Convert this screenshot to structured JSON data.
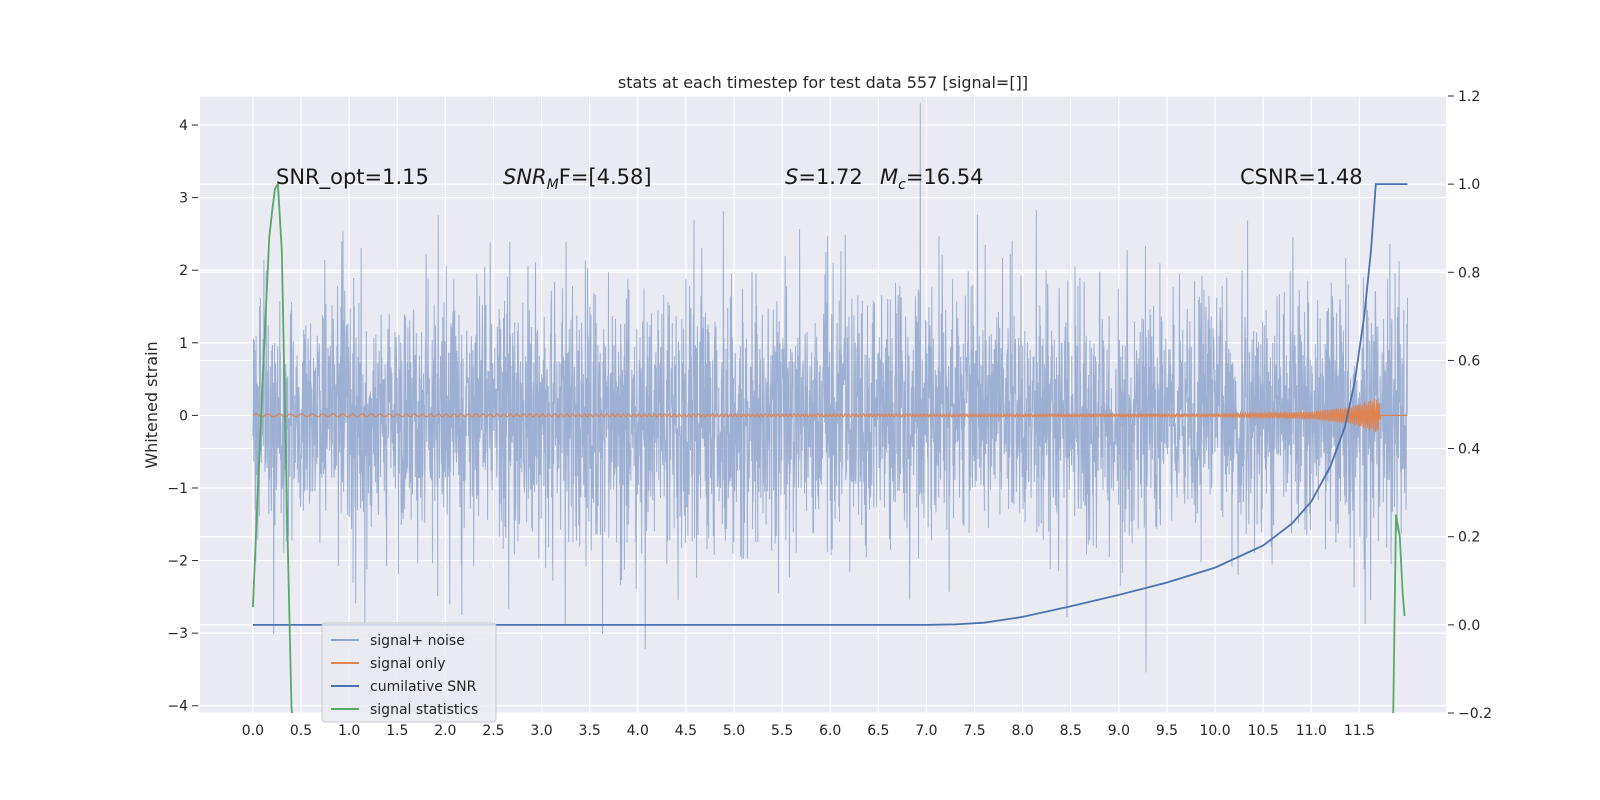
{
  "chart_data": {
    "type": "line",
    "title": "stats at each timestep for test data 557 [signal=[]]",
    "ylabel": "Whitened strain",
    "xlim": [
      -0.55,
      12.4
    ],
    "ylim": [
      -4.1,
      4.4
    ],
    "y2lim": [
      -0.2,
      1.2
    ],
    "x_ticks": [
      "0.0",
      "0.5",
      "1.0",
      "1.5",
      "2.0",
      "2.5",
      "3.0",
      "3.5",
      "4.0",
      "4.5",
      "5.0",
      "5.5",
      "6.0",
      "6.5",
      "7.0",
      "7.5",
      "8.0",
      "8.5",
      "9.0",
      "9.5",
      "10.0",
      "10.5",
      "11.0",
      "11.5"
    ],
    "y_ticks": [
      "4",
      "3",
      "2",
      "1",
      "0",
      "−1",
      "−2",
      "−3",
      "−4"
    ],
    "y2_ticks": [
      "1.2",
      "1.0",
      "0.8",
      "0.6",
      "0.4",
      "0.2",
      "0.0",
      "−0.2"
    ],
    "grid": true,
    "legend_position": "lower-left",
    "annotations": {
      "snr_opt": "SNR_opt=1.15",
      "snr_mf_sym": "SNR",
      "snr_mf_sub": "M",
      "snr_mf_rest": "F=[4.58]",
      "s_sym": "S",
      "s_rest": "=1.72",
      "mc_sym": "M",
      "mc_sub": "c",
      "mc_rest": "=16.54",
      "csnr": "CSNR=1.48"
    },
    "series": [
      {
        "name": "signal+ noise",
        "color": "#8fa5cc",
        "axis": "left",
        "noise_sigma": 0.85,
        "x_range": [
          0.0,
          12.0
        ]
      },
      {
        "name": "signal only",
        "color": "#dd8452",
        "axis": "left",
        "envelope": [
          [
            0.0,
            0.02
          ],
          [
            10.0,
            0.02
          ],
          [
            11.0,
            0.05
          ],
          [
            11.4,
            0.12
          ],
          [
            11.7,
            0.25
          ],
          [
            11.72,
            0.0
          ]
        ]
      },
      {
        "name": "cumilative SNR",
        "color": "#4c72b0",
        "axis": "right",
        "points": [
          [
            0.0,
            0.0
          ],
          [
            7.0,
            0.0
          ],
          [
            7.3,
            0.001
          ],
          [
            7.6,
            0.005
          ],
          [
            8.0,
            0.018
          ],
          [
            8.5,
            0.042
          ],
          [
            9.0,
            0.068
          ],
          [
            9.5,
            0.096
          ],
          [
            10.0,
            0.13
          ],
          [
            10.5,
            0.18
          ],
          [
            10.8,
            0.23
          ],
          [
            11.0,
            0.28
          ],
          [
            11.2,
            0.36
          ],
          [
            11.35,
            0.45
          ],
          [
            11.45,
            0.55
          ],
          [
            11.55,
            0.7
          ],
          [
            11.62,
            0.85
          ],
          [
            11.67,
            1.0
          ],
          [
            12.0,
            1.0
          ]
        ]
      },
      {
        "name": "signal statistics",
        "color": "#55a868",
        "axis": "right",
        "points": [
          [
            0.0,
            0.04
          ],
          [
            0.1,
            0.55
          ],
          [
            0.17,
            0.88
          ],
          [
            0.2,
            0.94
          ],
          [
            0.23,
            0.99
          ],
          [
            0.26,
            1.0
          ],
          [
            0.3,
            0.85
          ],
          [
            0.35,
            0.3
          ],
          [
            0.4,
            -0.18
          ],
          [
            0.41,
            -0.22
          ],
          [
            11.85,
            -0.22
          ],
          [
            11.88,
            0.25
          ],
          [
            11.92,
            0.2
          ],
          [
            11.95,
            0.07
          ],
          [
            11.97,
            0.02
          ]
        ]
      }
    ]
  }
}
